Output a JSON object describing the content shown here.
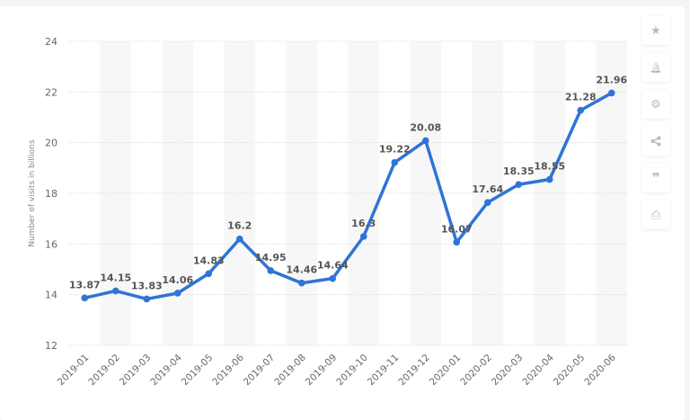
{
  "chart_data": {
    "type": "line",
    "title": "",
    "xlabel": "",
    "ylabel": "Number of visits in billions",
    "ylim": [
      12,
      24
    ],
    "yticks": [
      12,
      14,
      16,
      18,
      20,
      22,
      24
    ],
    "grid": true,
    "legend": null,
    "categories": [
      "2019-01",
      "2019-02",
      "2019-03",
      "2019-04",
      "2019-05",
      "2019-06",
      "2019-07",
      "2019-08",
      "2019-09",
      "2019-10",
      "2019-11",
      "2019-12",
      "2020-01",
      "2020-02",
      "2020-03",
      "2020-04",
      "2020-05",
      "2020-06"
    ],
    "series": [
      {
        "name": "Visits",
        "color": "#2f74d6",
        "values": [
          13.87,
          14.15,
          13.83,
          14.06,
          14.83,
          16.2,
          14.95,
          14.46,
          14.64,
          16.3,
          19.22,
          20.08,
          16.07,
          17.64,
          18.35,
          18.55,
          21.28,
          21.96
        ]
      }
    ],
    "data_labels": [
      "13.87",
      "14.15",
      "13.83",
      "14.06",
      "14.83",
      "16.2",
      "14.95",
      "14.46",
      "14.64",
      "16.3",
      "19.22",
      "20.08",
      "16.07",
      "17.64",
      "18.35",
      "18.55",
      "21.28",
      "21.96"
    ]
  },
  "colors": {
    "line": "#2f74d6",
    "band": "#f7f7f7",
    "grid": "#dddddd",
    "axis_text": "#666666",
    "label_text": "#555555"
  },
  "sidebar": {
    "items": [
      {
        "icon": "star-icon",
        "glyph": "★"
      },
      {
        "icon": "bell-icon",
        "glyph": "🔔"
      },
      {
        "icon": "gear-icon",
        "glyph": "⚙"
      },
      {
        "icon": "share-icon",
        "glyph": "<"
      },
      {
        "icon": "quote-icon",
        "glyph": "❞"
      },
      {
        "icon": "print-icon",
        "glyph": "⎙"
      }
    ]
  }
}
